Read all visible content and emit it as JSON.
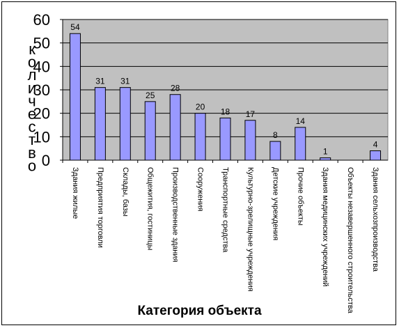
{
  "chart_data": {
    "type": "bar",
    "xlabel": "Категория объекта",
    "ylabel": "количество",
    "ylim": [
      0,
      60
    ],
    "yticks": [
      0,
      10,
      20,
      30,
      40,
      50,
      60
    ],
    "grid": true,
    "colors": {
      "plot_bg": "#c0c0c0",
      "bar_fill": "#9999ff",
      "bar_stroke": "#000000",
      "grid": "#000000"
    },
    "categories": [
      "Здания жилые",
      "Предприятия торговли",
      "Склады, базы",
      "Общежития, гостиницы",
      "Производственные здания",
      "Сооружения",
      "Транспортные средства",
      "Культурно-зрелищные учреждения",
      "Детские учреждения",
      "Прочие объекты",
      "Здания медицинских учреждений",
      "Объекты незавершенного строительства",
      "Здания сельхозпроизводства"
    ],
    "values": [
      54,
      31,
      31,
      25,
      28,
      20,
      18,
      17,
      8,
      14,
      1,
      0,
      4
    ]
  }
}
